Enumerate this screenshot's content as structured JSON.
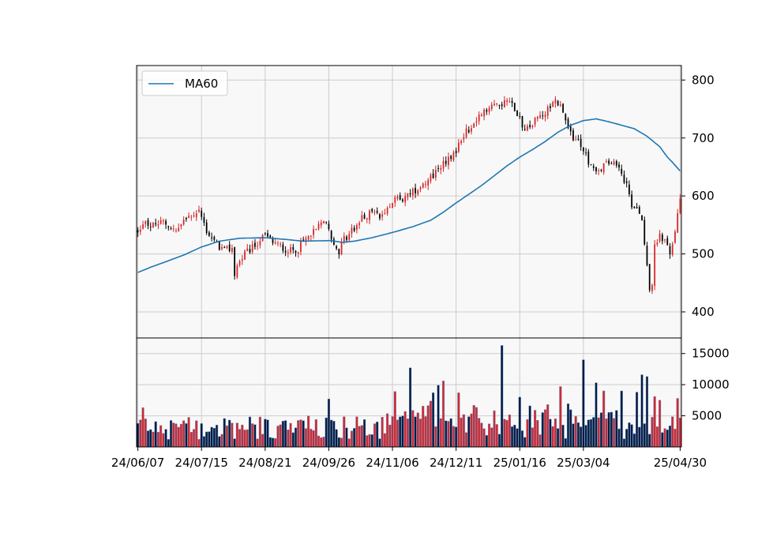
{
  "chart_data": {
    "type": "candlestick",
    "colors": {
      "background": "#f8f8f8",
      "grid": "#cccccc",
      "up": "#d62728",
      "down": "#000000",
      "ma": "#1f77b4",
      "volume_up": "#d62728",
      "volume_down": "#0a1a3a",
      "volume_edge": "#5b8fd0"
    },
    "price_axis": {
      "ylim": [
        355,
        825
      ],
      "ticks": [
        "400",
        "500",
        "600",
        "700",
        "800"
      ]
    },
    "volume_axis": {
      "ylim": [
        0,
        17500
      ],
      "ticks": [
        "5000",
        "10000",
        "15000"
      ]
    },
    "x_ticks": [
      "24/06/07",
      "24/07/15",
      "24/08/21",
      "24/09/26",
      "24/11/06",
      "24/12/11",
      "25/01/16",
      "25/03/04",
      "25/04/30"
    ],
    "x_tick_positions": [
      0,
      25,
      50,
      75,
      100,
      125,
      150,
      175,
      213
    ],
    "legend": {
      "label": "MA60",
      "position": "upper-left"
    },
    "n_days": 214,
    "price_anchors": [
      [
        0,
        540
      ],
      [
        3,
        560
      ],
      [
        5,
        548
      ],
      [
        10,
        555
      ],
      [
        15,
        540
      ],
      [
        20,
        565
      ],
      [
        24,
        575
      ],
      [
        27,
        540
      ],
      [
        30,
        520
      ],
      [
        34,
        505
      ],
      [
        37,
        510
      ],
      [
        38,
        465
      ],
      [
        39,
        480
      ],
      [
        42,
        500
      ],
      [
        45,
        510
      ],
      [
        48,
        525
      ],
      [
        50,
        530
      ],
      [
        55,
        515
      ],
      [
        60,
        505
      ],
      [
        63,
        510
      ],
      [
        66,
        525
      ],
      [
        70,
        540
      ],
      [
        73,
        560
      ],
      [
        75,
        540
      ],
      [
        77,
        520
      ],
      [
        79,
        505
      ],
      [
        81,
        525
      ],
      [
        85,
        545
      ],
      [
        88,
        560
      ],
      [
        92,
        575
      ],
      [
        95,
        560
      ],
      [
        98,
        585
      ],
      [
        102,
        595
      ],
      [
        106,
        600
      ],
      [
        110,
        615
      ],
      [
        114,
        630
      ],
      [
        118,
        645
      ],
      [
        122,
        665
      ],
      [
        125,
        680
      ],
      [
        128,
        705
      ],
      [
        131,
        720
      ],
      [
        135,
        740
      ],
      [
        138,
        755
      ],
      [
        142,
        760
      ],
      [
        146,
        765
      ],
      [
        149,
        745
      ],
      [
        152,
        710
      ],
      [
        155,
        725
      ],
      [
        160,
        745
      ],
      [
        163,
        765
      ],
      [
        166,
        760
      ],
      [
        168,
        725
      ],
      [
        170,
        705
      ],
      [
        172,
        700
      ],
      [
        175,
        675
      ],
      [
        177,
        660
      ],
      [
        180,
        640
      ],
      [
        183,
        655
      ],
      [
        186,
        655
      ],
      [
        189,
        650
      ],
      [
        192,
        620
      ],
      [
        194,
        585
      ],
      [
        196,
        580
      ],
      [
        198,
        560
      ],
      [
        199,
        510
      ],
      [
        200,
        480
      ],
      [
        201,
        435
      ],
      [
        202,
        450
      ],
      [
        203,
        510
      ],
      [
        205,
        535
      ],
      [
        207,
        520
      ],
      [
        209,
        500
      ],
      [
        211,
        540
      ],
      [
        213,
        590
      ]
    ],
    "ma60_anchors": [
      [
        0,
        468
      ],
      [
        5,
        477
      ],
      [
        10,
        485
      ],
      [
        18,
        498
      ],
      [
        25,
        512
      ],
      [
        32,
        522
      ],
      [
        40,
        527
      ],
      [
        50,
        528
      ],
      [
        58,
        525
      ],
      [
        65,
        522
      ],
      [
        76,
        523
      ],
      [
        80,
        520
      ],
      [
        85,
        522
      ],
      [
        92,
        528
      ],
      [
        100,
        537
      ],
      [
        108,
        547
      ],
      [
        115,
        558
      ],
      [
        120,
        572
      ],
      [
        125,
        588
      ],
      [
        130,
        603
      ],
      [
        135,
        618
      ],
      [
        140,
        635
      ],
      [
        145,
        652
      ],
      [
        150,
        667
      ],
      [
        155,
        680
      ],
      [
        160,
        694
      ],
      [
        165,
        710
      ],
      [
        170,
        722
      ],
      [
        175,
        730
      ],
      [
        180,
        733
      ],
      [
        185,
        728
      ],
      [
        190,
        722
      ],
      [
        195,
        716
      ],
      [
        200,
        703
      ],
      [
        205,
        685
      ],
      [
        208,
        667
      ],
      [
        210,
        658
      ],
      [
        213,
        643
      ]
    ],
    "volume_spikes": [
      [
        2,
        6300
      ],
      [
        75,
        7700
      ],
      [
        101,
        8900
      ],
      [
        107,
        12700
      ],
      [
        116,
        8700
      ],
      [
        118,
        9900
      ],
      [
        120,
        10600
      ],
      [
        126,
        8700
      ],
      [
        143,
        16300
      ],
      [
        150,
        8000
      ],
      [
        154,
        6600
      ],
      [
        161,
        6800
      ],
      [
        166,
        9700
      ],
      [
        175,
        14000
      ],
      [
        180,
        10300
      ],
      [
        183,
        9000
      ],
      [
        190,
        9000
      ],
      [
        196,
        8800
      ],
      [
        198,
        11600
      ],
      [
        200,
        11300
      ],
      [
        203,
        8100
      ],
      [
        205,
        7500
      ],
      [
        212,
        7800
      ]
    ]
  }
}
